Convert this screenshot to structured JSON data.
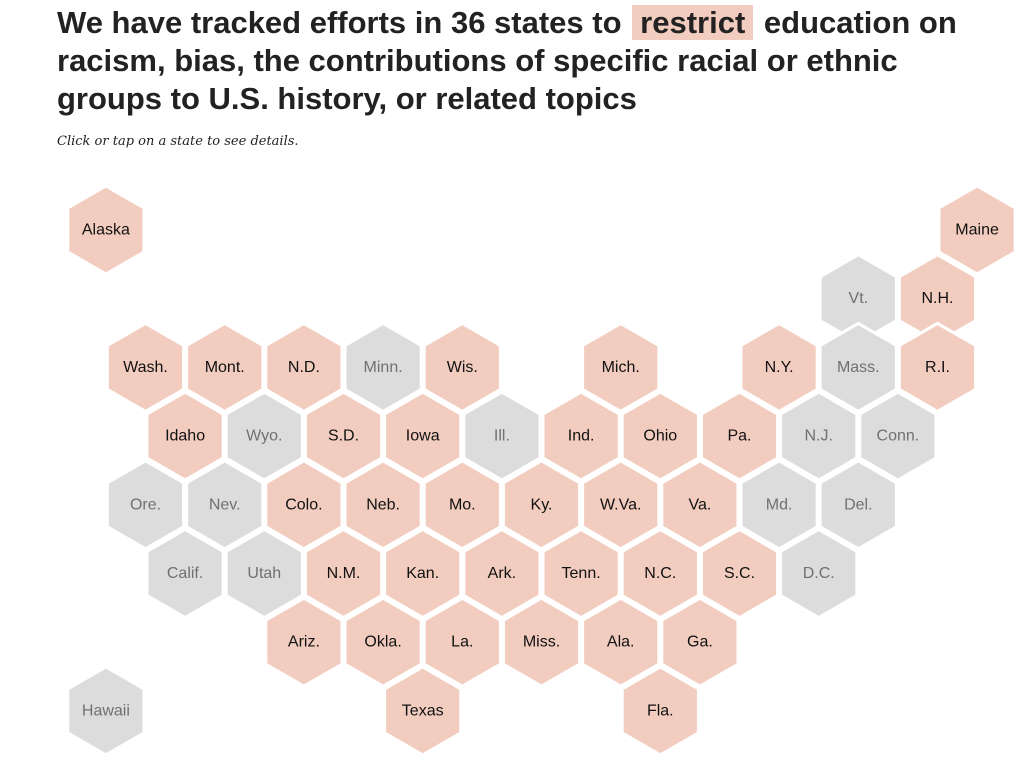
{
  "headline": {
    "before": "We have tracked efforts in 36 states to",
    "highlight": "restrict",
    "after": "education on racism, bias, the contributions of specific racial or ethnic groups to U.S. history, or related topics"
  },
  "subtitle": "Click or tap on a state to see details.",
  "colors": {
    "tracked": "#f2cdbf",
    "not_tracked": "#dcdcdc",
    "tracked_text": "#111111",
    "not_tracked_text": "#707070"
  },
  "states": [
    {
      "label": "Alaska",
      "slug": "alaska",
      "row": 0,
      "col": 1,
      "tracked": true
    },
    {
      "label": "Maine",
      "slug": "maine",
      "row": 0,
      "col": 23,
      "tracked": true
    },
    {
      "label": "Vt.",
      "slug": "vermont",
      "row": 1,
      "col": 20,
      "tracked": false
    },
    {
      "label": "N.H.",
      "slug": "new-hampshire",
      "row": 1,
      "col": 22,
      "tracked": true
    },
    {
      "label": "Wash.",
      "slug": "washington",
      "row": 2,
      "col": 2,
      "tracked": true
    },
    {
      "label": "Mont.",
      "slug": "montana",
      "row": 2,
      "col": 4,
      "tracked": true
    },
    {
      "label": "N.D.",
      "slug": "north-dakota",
      "row": 2,
      "col": 6,
      "tracked": true
    },
    {
      "label": "Minn.",
      "slug": "minnesota",
      "row": 2,
      "col": 8,
      "tracked": false
    },
    {
      "label": "Wis.",
      "slug": "wisconsin",
      "row": 2,
      "col": 10,
      "tracked": true
    },
    {
      "label": "Mich.",
      "slug": "michigan",
      "row": 2,
      "col": 14,
      "tracked": true
    },
    {
      "label": "N.Y.",
      "slug": "new-york",
      "row": 2,
      "col": 18,
      "tracked": true
    },
    {
      "label": "Mass.",
      "slug": "massachusetts",
      "row": 2,
      "col": 20,
      "tracked": false
    },
    {
      "label": "R.I.",
      "slug": "rhode-island",
      "row": 2,
      "col": 22,
      "tracked": true
    },
    {
      "label": "Idaho",
      "slug": "idaho",
      "row": 3,
      "col": 3,
      "tracked": true
    },
    {
      "label": "Wyo.",
      "slug": "wyoming",
      "row": 3,
      "col": 5,
      "tracked": false
    },
    {
      "label": "S.D.",
      "slug": "south-dakota",
      "row": 3,
      "col": 7,
      "tracked": true
    },
    {
      "label": "Iowa",
      "slug": "iowa",
      "row": 3,
      "col": 9,
      "tracked": true
    },
    {
      "label": "Ill.",
      "slug": "illinois",
      "row": 3,
      "col": 11,
      "tracked": false
    },
    {
      "label": "Ind.",
      "slug": "indiana",
      "row": 3,
      "col": 13,
      "tracked": true
    },
    {
      "label": "Ohio",
      "slug": "ohio",
      "row": 3,
      "col": 15,
      "tracked": true
    },
    {
      "label": "Pa.",
      "slug": "pennsylvania",
      "row": 3,
      "col": 17,
      "tracked": true
    },
    {
      "label": "N.J.",
      "slug": "new-jersey",
      "row": 3,
      "col": 19,
      "tracked": false
    },
    {
      "label": "Conn.",
      "slug": "connecticut",
      "row": 3,
      "col": 21,
      "tracked": false
    },
    {
      "label": "Ore.",
      "slug": "oregon",
      "row": 4,
      "col": 2,
      "tracked": false
    },
    {
      "label": "Nev.",
      "slug": "nevada",
      "row": 4,
      "col": 4,
      "tracked": false
    },
    {
      "label": "Colo.",
      "slug": "colorado",
      "row": 4,
      "col": 6,
      "tracked": true
    },
    {
      "label": "Neb.",
      "slug": "nebraska",
      "row": 4,
      "col": 8,
      "tracked": true
    },
    {
      "label": "Mo.",
      "slug": "missouri",
      "row": 4,
      "col": 10,
      "tracked": true
    },
    {
      "label": "Ky.",
      "slug": "kentucky",
      "row": 4,
      "col": 12,
      "tracked": true
    },
    {
      "label": "W.Va.",
      "slug": "west-virginia",
      "row": 4,
      "col": 14,
      "tracked": true
    },
    {
      "label": "Va.",
      "slug": "virginia",
      "row": 4,
      "col": 16,
      "tracked": true
    },
    {
      "label": "Md.",
      "slug": "maryland",
      "row": 4,
      "col": 18,
      "tracked": false
    },
    {
      "label": "Del.",
      "slug": "delaware",
      "row": 4,
      "col": 20,
      "tracked": false
    },
    {
      "label": "Calif.",
      "slug": "california",
      "row": 5,
      "col": 3,
      "tracked": false
    },
    {
      "label": "Utah",
      "slug": "utah",
      "row": 5,
      "col": 5,
      "tracked": false
    },
    {
      "label": "N.M.",
      "slug": "new-mexico",
      "row": 5,
      "col": 7,
      "tracked": true
    },
    {
      "label": "Kan.",
      "slug": "kansas",
      "row": 5,
      "col": 9,
      "tracked": true
    },
    {
      "label": "Ark.",
      "slug": "arkansas",
      "row": 5,
      "col": 11,
      "tracked": true
    },
    {
      "label": "Tenn.",
      "slug": "tennessee",
      "row": 5,
      "col": 13,
      "tracked": true
    },
    {
      "label": "N.C.",
      "slug": "north-carolina",
      "row": 5,
      "col": 15,
      "tracked": true
    },
    {
      "label": "S.C.",
      "slug": "south-carolina",
      "row": 5,
      "col": 17,
      "tracked": true
    },
    {
      "label": "D.C.",
      "slug": "district-of-columbia",
      "row": 5,
      "col": 19,
      "tracked": false
    },
    {
      "label": "Ariz.",
      "slug": "arizona",
      "row": 6,
      "col": 6,
      "tracked": true
    },
    {
      "label": "Okla.",
      "slug": "oklahoma",
      "row": 6,
      "col": 8,
      "tracked": true
    },
    {
      "label": "La.",
      "slug": "louisiana",
      "row": 6,
      "col": 10,
      "tracked": true
    },
    {
      "label": "Miss.",
      "slug": "mississippi",
      "row": 6,
      "col": 12,
      "tracked": true
    },
    {
      "label": "Ala.",
      "slug": "alabama",
      "row": 6,
      "col": 14,
      "tracked": true
    },
    {
      "label": "Ga.",
      "slug": "georgia",
      "row": 6,
      "col": 16,
      "tracked": true
    },
    {
      "label": "Hawaii",
      "slug": "hawaii",
      "row": 7,
      "col": 1,
      "tracked": false
    },
    {
      "label": "Texas",
      "slug": "texas",
      "row": 7,
      "col": 9,
      "tracked": true
    },
    {
      "label": "Fla.",
      "slug": "florida",
      "row": 7,
      "col": 15,
      "tracked": true
    }
  ]
}
